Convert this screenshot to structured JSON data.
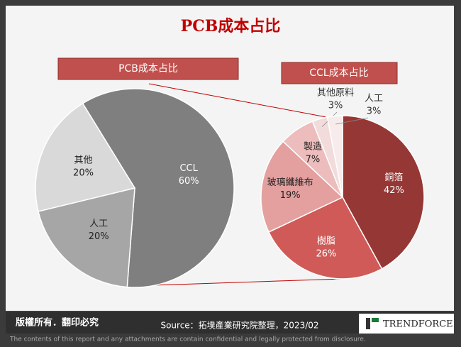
{
  "title": "PCB成本占比",
  "chart_data": [
    {
      "type": "pie",
      "title": "PCB成本占比",
      "categories": [
        "CCL",
        "人工",
        "其他"
      ],
      "values": [
        60,
        20,
        20
      ],
      "value_labels": [
        "60%",
        "20%",
        "20%"
      ],
      "colors": [
        "#7f7f7f",
        "#a6a6a6",
        "#d9d9d9"
      ]
    },
    {
      "type": "pie",
      "title": "CCL成本占比",
      "categories": [
        "銅箔",
        "樹脂",
        "玻璃纖維布",
        "製造",
        "其他原料",
        "人工"
      ],
      "values": [
        42,
        26,
        19,
        7,
        3,
        3
      ],
      "value_labels": [
        "42%",
        "26%",
        "19%",
        "7%",
        "3%",
        "3%"
      ],
      "colors": [
        "#953735",
        "#d05a58",
        "#e3a09f",
        "#ecbdbc",
        "#f2dcdb",
        "#f8ebeb"
      ]
    }
  ],
  "footer": {
    "rights": "版權所有．翻印必究",
    "source": "Source：拓墣產業研究院整理，2023/02",
    "logo": "TRENDFORCE",
    "disclaimer": "The contents of this report and any attachments are contain confidential and legally protected from disclosure."
  }
}
